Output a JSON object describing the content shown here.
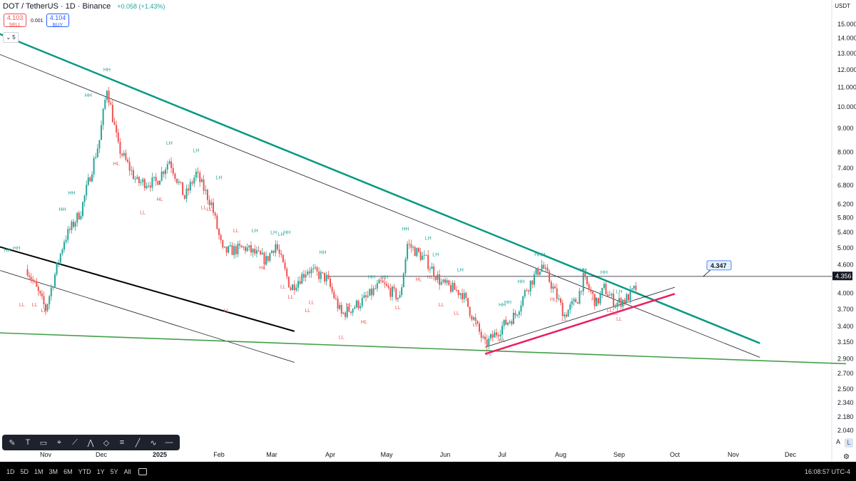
{
  "header": {
    "symbol": "DOT / TetherUS · 1D · Binance",
    "change": "+0.058 (+1.43%)",
    "sell_price": "4.103",
    "sell_label": "SELL",
    "buy_price": "4.104",
    "buy_label": "BUY",
    "spread": "0.001",
    "indicator_count": "⌄ 5",
    "currency": "USDT"
  },
  "toolbar": {
    "tools": [
      "brush-icon",
      "text-icon",
      "note-icon",
      "pin-icon",
      "fib-icon",
      "pattern-icon",
      "shape-icon",
      "position-icon",
      "line-icon",
      "path-icon",
      "hline-icon"
    ]
  },
  "bottom_bar": {
    "timeframes": [
      "1D",
      "5D",
      "1M",
      "3M",
      "6M",
      "YTD",
      "1Y",
      "5Y",
      "All"
    ],
    "clock": "16:08:57 UTC-4"
  },
  "scale": {
    "auto": "A",
    "log": "L"
  },
  "chart_data": {
    "type": "candlestick",
    "log_scale": true,
    "grid": false,
    "ylim": [
      1.9,
      16.3
    ],
    "price_ticks": [
      "15.000",
      "14.000",
      "13.000",
      "12.000",
      "11.000",
      "10.000",
      "9.000",
      "8.000",
      "7.400",
      "6.800",
      "6.200",
      "5.800",
      "5.400",
      "5.000",
      "4.600",
      "4.000",
      "3.700",
      "3.400",
      "3.150",
      "2.900",
      "2.700",
      "2.500",
      "2.340",
      "2.180",
      "2.040"
    ],
    "time_ticks": [
      "Nov",
      "Dec",
      "2025",
      "Feb",
      "Mar",
      "Apr",
      "May",
      "Jun",
      "Jul",
      "Aug",
      "Sep",
      "Oct",
      "Nov",
      "Dec"
    ],
    "last_price": "4.356",
    "last_price_color": "#131722",
    "horizontal_line": {
      "price": 4.347,
      "label": "4.347"
    },
    "key_points": [
      {
        "x": "2024-10-22",
        "close": 4.5
      },
      {
        "x": "2024-11-01",
        "close": 3.7
      },
      {
        "x": "2024-11-11",
        "close": 5.2
      },
      {
        "x": "2024-11-20",
        "close": 6.0
      },
      {
        "x": "2024-11-30",
        "close": 8.5
      },
      {
        "x": "2024-12-04",
        "close": 11.0
      },
      {
        "x": "2024-12-10",
        "close": 8.2
      },
      {
        "x": "2024-12-20",
        "close": 6.9
      },
      {
        "x": "2024-12-30",
        "close": 6.9
      },
      {
        "x": "2025-01-06",
        "close": 7.7
      },
      {
        "x": "2025-01-14",
        "close": 6.4
      },
      {
        "x": "2025-01-20",
        "close": 7.2
      },
      {
        "x": "2025-01-28",
        "close": 6.2
      },
      {
        "x": "2025-02-03",
        "close": 4.9
      },
      {
        "x": "2025-02-15",
        "close": 5.0
      },
      {
        "x": "2025-02-26",
        "close": 4.7
      },
      {
        "x": "2025-03-03",
        "close": 5.1
      },
      {
        "x": "2025-03-11",
        "close": 4.1
      },
      {
        "x": "2025-03-20",
        "close": 4.5
      },
      {
        "x": "2025-03-30",
        "close": 4.3
      },
      {
        "x": "2025-04-07",
        "close": 3.6
      },
      {
        "x": "2025-04-20",
        "close": 3.9
      },
      {
        "x": "2025-04-28",
        "close": 4.2
      },
      {
        "x": "2025-05-08",
        "close": 3.9
      },
      {
        "x": "2025-05-12",
        "close": 5.1
      },
      {
        "x": "2025-05-22",
        "close": 4.7
      },
      {
        "x": "2025-05-30",
        "close": 4.2
      },
      {
        "x": "2025-06-10",
        "close": 4.0
      },
      {
        "x": "2025-06-22",
        "close": 3.1
      },
      {
        "x": "2025-07-01",
        "close": 3.4
      },
      {
        "x": "2025-07-08",
        "close": 3.6
      },
      {
        "x": "2025-07-14",
        "close": 4.1
      },
      {
        "x": "2025-07-22",
        "close": 4.6
      },
      {
        "x": "2025-07-28",
        "close": 4.1
      },
      {
        "x": "2025-08-03",
        "close": 3.6
      },
      {
        "x": "2025-08-10",
        "close": 3.9
      },
      {
        "x": "2025-08-13",
        "close": 4.3
      },
      {
        "x": "2025-08-20",
        "close": 3.8
      },
      {
        "x": "2025-08-24",
        "close": 4.1
      },
      {
        "x": "2025-08-30",
        "close": 3.8
      },
      {
        "x": "2025-09-05",
        "close": 3.9
      },
      {
        "x": "2025-09-10",
        "close": 4.1
      }
    ],
    "swing_labels": [
      {
        "t": "HH",
        "x": "2024-10-11",
        "p": 4.9
      },
      {
        "t": "HH",
        "x": "2024-10-16",
        "p": 4.95
      },
      {
        "t": "LL",
        "x": "2024-10-03",
        "p": 3.85
      },
      {
        "t": "LL",
        "x": "2024-10-19",
        "p": 3.75
      },
      {
        "t": "LL",
        "x": "2024-10-26",
        "p": 3.75
      },
      {
        "t": "LL",
        "x": "2024-10-31",
        "p": 3.65
      },
      {
        "t": "HH",
        "x": "2024-11-10",
        "p": 6.0
      },
      {
        "t": "HH",
        "x": "2024-11-15",
        "p": 6.5
      },
      {
        "t": "HH",
        "x": "2024-11-24",
        "p": 10.5
      },
      {
        "t": "HH",
        "x": "2024-12-04",
        "p": 11.9
      },
      {
        "t": "HL",
        "x": "2024-12-09",
        "p": 7.5
      },
      {
        "t": "LL",
        "x": "2024-12-23",
        "p": 5.9
      },
      {
        "t": "LH",
        "x": "2025-01-06",
        "p": 8.3
      },
      {
        "t": "HL",
        "x": "2025-01-01",
        "p": 6.3
      },
      {
        "t": "LH",
        "x": "2025-01-20",
        "p": 8.0
      },
      {
        "t": "LL",
        "x": "2025-01-24",
        "p": 6.05
      },
      {
        "t": "LL",
        "x": "2025-01-27",
        "p": 6.0
      },
      {
        "t": "LH",
        "x": "2025-02-01",
        "p": 7.0
      },
      {
        "t": "LL",
        "x": "2025-02-10",
        "p": 5.4
      },
      {
        "t": "LL",
        "x": "2025-02-05",
        "p": 3.65
      },
      {
        "t": "LH",
        "x": "2025-02-20",
        "p": 5.4
      },
      {
        "t": "HL",
        "x": "2025-02-24",
        "p": 4.5
      },
      {
        "t": "LH",
        "x": "2025-03-02",
        "p": 5.35
      },
      {
        "t": "LH",
        "x": "2025-03-06",
        "p": 5.3
      },
      {
        "t": "HH",
        "x": "2025-03-09",
        "p": 5.35
      },
      {
        "t": "LL",
        "x": "2025-03-07",
        "p": 4.1
      },
      {
        "t": "LL",
        "x": "2025-03-11",
        "p": 3.9
      },
      {
        "t": "LL",
        "x": "2025-03-22",
        "p": 3.8
      },
      {
        "t": "HH",
        "x": "2025-03-28",
        "p": 4.85
      },
      {
        "t": "LL",
        "x": "2025-03-20",
        "p": 3.65
      },
      {
        "t": "LL",
        "x": "2025-04-07",
        "p": 3.2
      },
      {
        "t": "HL",
        "x": "2025-04-11",
        "p": 3.75
      },
      {
        "t": "HL",
        "x": "2025-04-19",
        "p": 3.45
      },
      {
        "t": "HH",
        "x": "2025-04-23",
        "p": 4.3
      },
      {
        "t": "HH",
        "x": "2025-04-30",
        "p": 4.3
      },
      {
        "t": "LL",
        "x": "2025-05-07",
        "p": 3.7
      },
      {
        "t": "HH",
        "x": "2025-05-11",
        "p": 5.45
      },
      {
        "t": "LH",
        "x": "2025-05-23",
        "p": 5.2
      },
      {
        "t": "HL",
        "x": "2025-05-18",
        "p": 4.25
      },
      {
        "t": "HL",
        "x": "2025-05-24",
        "p": 4.3
      },
      {
        "t": "LH",
        "x": "2025-05-27",
        "p": 4.8
      },
      {
        "t": "LL",
        "x": "2025-05-30",
        "p": 3.75
      },
      {
        "t": "LL",
        "x": "2025-06-07",
        "p": 3.6
      },
      {
        "t": "LH",
        "x": "2025-06-09",
        "p": 4.45
      },
      {
        "t": "LL",
        "x": "2025-06-17",
        "p": 3.4
      },
      {
        "t": "LL",
        "x": "2025-06-24",
        "p": 2.95
      },
      {
        "t": "HL",
        "x": "2025-07-01",
        "p": 3.15
      },
      {
        "t": "HH",
        "x": "2025-07-01",
        "p": 3.75
      },
      {
        "t": "HH",
        "x": "2025-07-04",
        "p": 3.8
      },
      {
        "t": "HH",
        "x": "2025-07-11",
        "p": 4.2
      },
      {
        "t": "HH",
        "x": "2025-07-20",
        "p": 4.8
      },
      {
        "t": "HH",
        "x": "2025-07-22",
        "p": 4.8
      },
      {
        "t": "HL",
        "x": "2025-07-28",
        "p": 3.85
      },
      {
        "t": "LL",
        "x": "2025-08-03",
        "p": 3.5
      },
      {
        "t": "HH",
        "x": "2025-08-13",
        "p": 4.45
      },
      {
        "t": "HL",
        "x": "2025-08-19",
        "p": 3.85
      },
      {
        "t": "HH",
        "x": "2025-08-24",
        "p": 4.4
      },
      {
        "t": "LH",
        "x": "2025-09-01",
        "p": 4.0
      },
      {
        "t": "LL",
        "x": "2025-08-27",
        "p": 3.65
      },
      {
        "t": "LL",
        "x": "2025-08-30",
        "p": 3.6
      },
      {
        "t": "LL",
        "x": "2025-09-01",
        "p": 3.5
      }
    ],
    "trendlines": [
      {
        "color": "#089981",
        "width": 2.5,
        "from": [
          "2024-10-01",
          14.6
        ],
        "to": [
          "2025-11-15",
          3.13
        ]
      },
      {
        "color": "#131722",
        "width": 0.8,
        "from": [
          "2024-10-01",
          13.2
        ],
        "to": [
          "2025-11-15",
          2.92
        ]
      },
      {
        "color": "#000000",
        "width": 2,
        "from": [
          "2024-10-01",
          5.1
        ],
        "to": [
          "2025-03-13",
          3.32
        ]
      },
      {
        "color": "#131722",
        "width": 0.8,
        "from": [
          "2024-10-01",
          4.55
        ],
        "to": [
          "2025-03-13",
          2.85
        ]
      },
      {
        "color": "#43a047",
        "width": 1.6,
        "from": [
          "2024-10-01",
          3.3
        ],
        "to": [
          "2025-12-31",
          2.83
        ]
      },
      {
        "color": "#e91e63",
        "width": 2.5,
        "from": [
          "2025-06-22",
          2.97
        ],
        "to": [
          "2025-10-01",
          3.99
        ]
      },
      {
        "color": "#131722",
        "width": 0.8,
        "from": [
          "2025-06-22",
          3.07
        ],
        "to": [
          "2025-10-01",
          4.12
        ]
      }
    ]
  }
}
